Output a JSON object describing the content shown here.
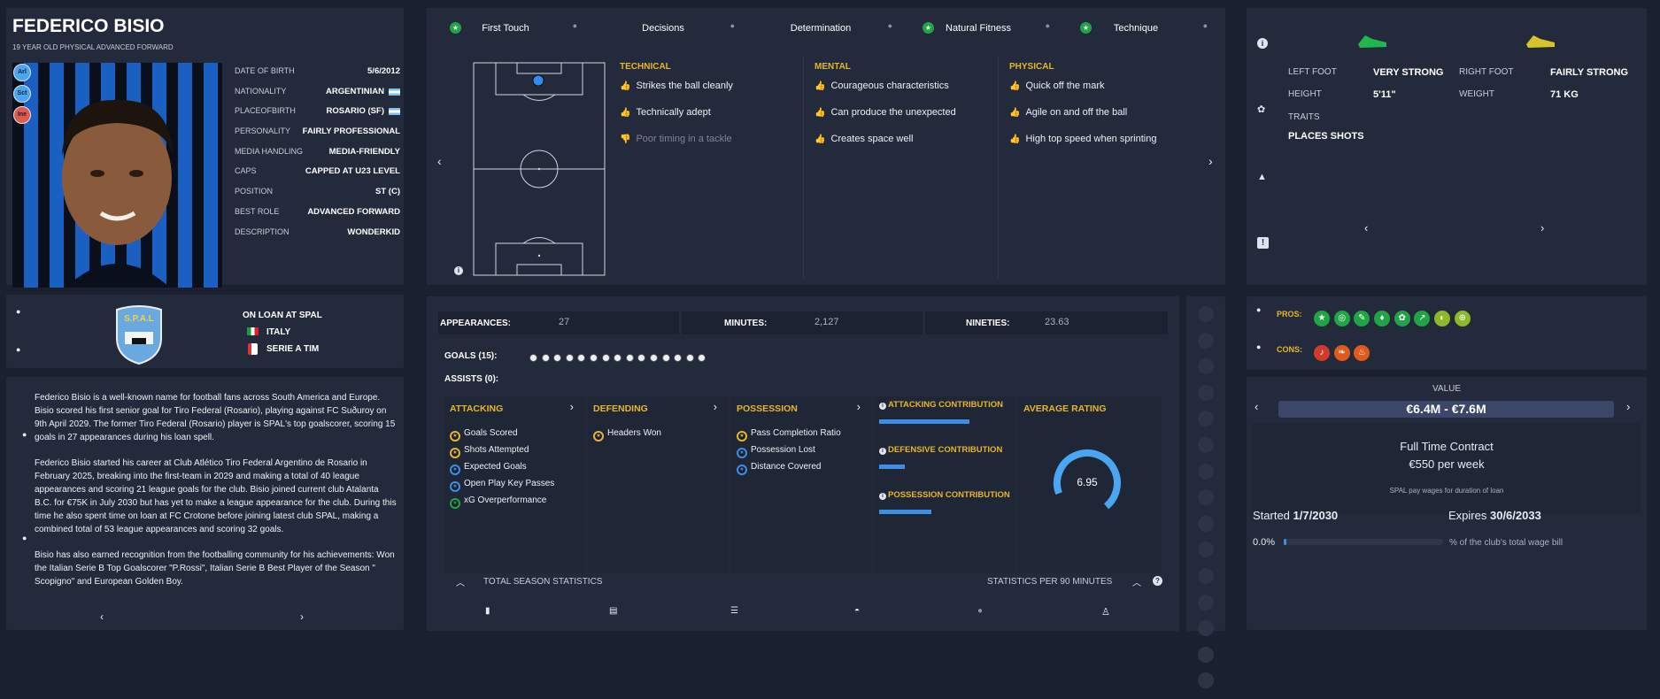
{
  "profile": {
    "name": "FEDERICO BISIO",
    "subtitle": "19 YEAR OLD PHYSICAL ADVANCED FORWARD",
    "badges": [
      {
        "label": "Arl",
        "color": "#4aa6f0"
      },
      {
        "label": "Sct",
        "color": "#4aa6f0"
      },
      {
        "label": "Ine",
        "color": "#e05a4d"
      }
    ],
    "fields": [
      {
        "label": "DATE OF BIRTH",
        "value": "5/6/2012",
        "flag": false
      },
      {
        "label": "NATIONALITY",
        "value": "ARGENTINIAN",
        "flag": true
      },
      {
        "label": "PLACEOFBIRTH",
        "value": "ROSARIO (SF)",
        "flag": true
      },
      {
        "label": "PERSONALITY",
        "value": "FAIRLY PROFESSIONAL",
        "flag": false
      },
      {
        "label": "MEDIA HANDLING",
        "value": "MEDIA-FRIENDLY",
        "flag": false
      },
      {
        "label": "CAPS",
        "value": "CAPPED AT U23 LEVEL",
        "flag": false
      },
      {
        "label": "POSITION",
        "value": "ST (C)",
        "flag": false
      },
      {
        "label": "BEST ROLE",
        "value": "ADVANCED FORWARD",
        "flag": false
      },
      {
        "label": "DESCRIPTION",
        "value": "WONDERKID",
        "flag": false
      }
    ]
  },
  "club": {
    "loan": "ON LOAN AT SPAL",
    "country": "ITALY",
    "league": "SERIE A TIM",
    "logo_text": "S.P.A.L"
  },
  "bio": {
    "paragraphs": [
      "Federico Bisio is a well-known name for football fans across South America and Europe. Bisio scored his first senior goal for Tiro Federal (Rosario), playing against FC Suðuroy on 9th April 2029. The former Tiro Federal (Rosario) player is SPAL's top goalscorer, scoring 15 goals in 27 appearances during his loan spell.",
      "Federico Bisio started his career at Club Atlético Tiro Federal Argentino de Rosario in February 2025, breaking into the first-team in 2029 and making a total of 40 league appearances and scoring 21 league goals for the club. Bisio joined current club Atalanta B.C. for €75K in July 2030 but has yet to make a league appearance for the club. During this time he also spent time on loan at FC Crotone before joining latest club SPAL, making a combined total of 53 league appearances and scoring 32 goals.",
      "Bisio has also earned recognition from the footballing community for his achievements: Won the Italian Serie B Top Goalscorer \"P.Rossi\", Italian Serie B Best Player of the Season \" Scopigno\" and European Golden Boy."
    ]
  },
  "attr_tabs": [
    {
      "label": "First Touch",
      "star": true
    },
    {
      "label": "Decisions",
      "star": false
    },
    {
      "label": "Determination",
      "star": false
    },
    {
      "label": "Natural Fitness",
      "star": true
    },
    {
      "label": "Technique",
      "star": true
    }
  ],
  "traits_cols": [
    {
      "title": "TECHNICAL",
      "items": [
        {
          "text": "Strikes the ball cleanly",
          "neg": false
        },
        {
          "text": "Technically adept",
          "neg": false
        },
        {
          "text": "Poor timing in a tackle",
          "neg": true
        }
      ]
    },
    {
      "title": "MENTAL",
      "items": [
        {
          "text": "Courageous characteristics",
          "neg": false
        },
        {
          "text": "Can produce the unexpected",
          "neg": false
        },
        {
          "text": "Creates space well",
          "neg": false
        }
      ]
    },
    {
      "title": "PHYSICAL",
      "items": [
        {
          "text": "Quick off the mark",
          "neg": false
        },
        {
          "text": "Agile on and off the ball",
          "neg": false
        },
        {
          "text": "High top speed when sprinting",
          "neg": false
        }
      ]
    }
  ],
  "physical": {
    "left_foot_label": "LEFT FOOT",
    "left_foot": "VERY STRONG",
    "right_foot_label": "RIGHT FOOT",
    "right_foot": "FAIRLY STRONG",
    "height_label": "HEIGHT",
    "height": "5'11\"",
    "weight_label": "WEIGHT",
    "weight": "71 KG",
    "traits_label": "TRAITS",
    "traits": "PLACES SHOTS"
  },
  "stats": {
    "appearances_label": "APPEARANCES:",
    "appearances": "27",
    "minutes_label": "MINUTES:",
    "minutes": "2,127",
    "nineties_label": "NINETIES:",
    "nineties": "23.63",
    "goals_label": "GOALS (15):",
    "goals_count": 15,
    "assists_label": "ASSISTS (0):"
  },
  "cats": [
    {
      "title": "ATTACKING",
      "items": [
        {
          "t": "Goals Scored",
          "c": "gold"
        },
        {
          "t": "Shots Attempted",
          "c": "gold"
        },
        {
          "t": "Expected Goals",
          "c": "blue"
        },
        {
          "t": "Open Play Key Passes",
          "c": "blue"
        },
        {
          "t": "xG Overperformance",
          "c": "green"
        }
      ]
    },
    {
      "title": "DEFENDING",
      "items": [
        {
          "t": "Headers Won",
          "c": "gold"
        }
      ]
    },
    {
      "title": "POSSESSION",
      "items": [
        {
          "t": "Pass Completion Ratio",
          "c": "gold"
        },
        {
          "t": "Possession Lost",
          "c": "blue"
        },
        {
          "t": "Distance Covered",
          "c": "blue"
        }
      ]
    }
  ],
  "contrib": [
    {
      "label": "ATTACKING CONTRIBUTION",
      "level": 0.52
    },
    {
      "label": "DEFENSIVE CONTRIBUTION",
      "level": 0.15
    },
    {
      "label": "POSSESSION CONTRIBUTION",
      "level": 0.3
    }
  ],
  "rating": {
    "label": "AVERAGE RATING",
    "value": "6.95",
    "fraction": 0.695
  },
  "footer": {
    "left": "TOTAL SEASON STATISTICS",
    "right": "STATISTICS PER 90 MINUTES"
  },
  "proscons": {
    "pros_label": "PROS:",
    "cons_label": "CONS:",
    "pros_count": 8,
    "cons_count": 3
  },
  "contract": {
    "value_label": "VALUE",
    "value": "€6.4M - €7.6M",
    "type": "Full Time Contract",
    "wage": "€550 per week",
    "note": "SPAL pay wages for duration of loan",
    "started_label": "Started",
    "started": "1/7/2030",
    "expires_label": "Expires",
    "expires": "30/6/2033",
    "pct": "0.0%",
    "pct_text": "% of the club's total wage bill",
    "pct_value": 0.0
  }
}
